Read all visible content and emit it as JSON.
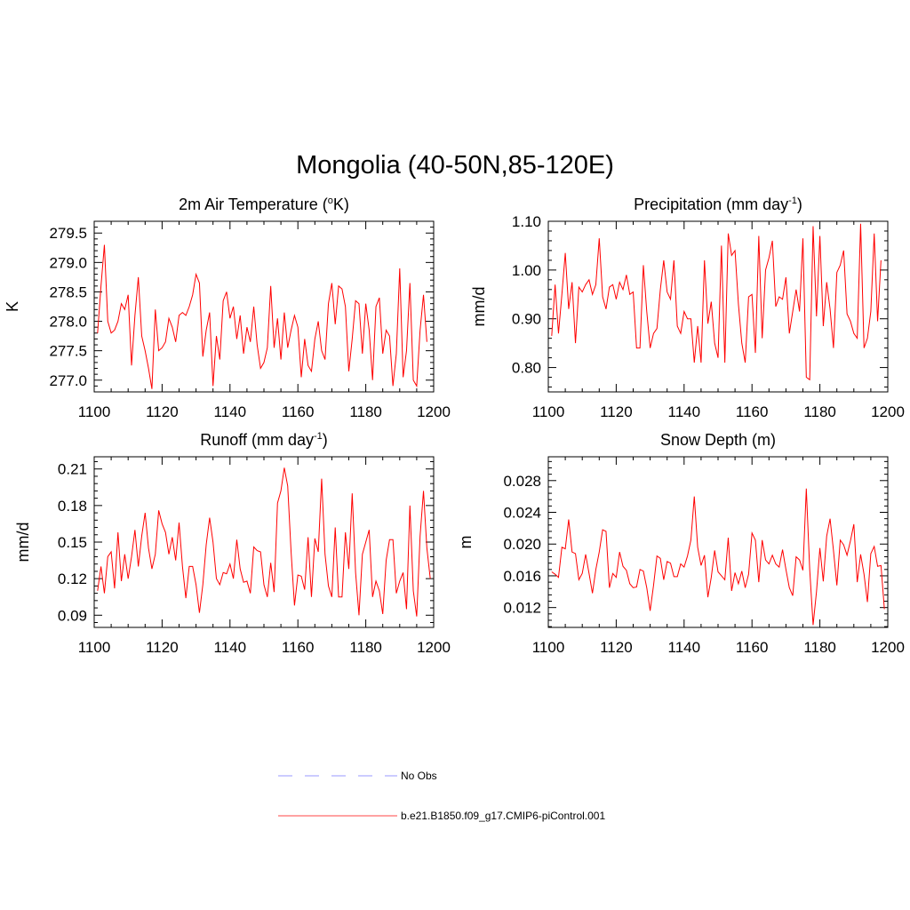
{
  "figure_title": "Mongolia (40-50N,85-120E)",
  "legend": {
    "entries": [
      {
        "label": "No Obs",
        "color": "#9999ff",
        "style": "dashed"
      },
      {
        "label": "b.e21.B1850.f09_g17.CMIP6-piControl.001",
        "color": "#ff4444",
        "style": "solid"
      }
    ]
  },
  "chart_data": [
    {
      "type": "line",
      "title": "2m Air Temperature (",
      "title_sup": "o",
      "title_after": "K)",
      "xlabel": "",
      "ylabel": "K",
      "xlim": [
        1100,
        1200
      ],
      "ylim": [
        276.8,
        279.7
      ],
      "xticks": [
        1100,
        1120,
        1140,
        1160,
        1180,
        1200
      ],
      "xtick_labels": [
        "1100",
        "1120",
        "1140",
        "1160",
        "1180",
        "1200"
      ],
      "yticks": [
        277.0,
        277.5,
        278.0,
        278.5,
        279.0,
        279.5
      ],
      "ytick_labels": [
        "277.0",
        "277.5",
        "278.0",
        "278.5",
        "279.0",
        "279.5"
      ],
      "series": [
        {
          "name": "b.e21.B1850.f09_g17.CMIP6-piControl.001",
          "color": "#ff0000",
          "x_start": 1101,
          "x_step": 1,
          "values": [
            277.8,
            278.6,
            279.3,
            278.0,
            277.8,
            277.85,
            278.0,
            278.3,
            278.2,
            278.45,
            277.25,
            278.1,
            278.75,
            277.75,
            277.5,
            277.2,
            276.85,
            278.2,
            277.5,
            277.55,
            277.65,
            278.05,
            277.9,
            277.65,
            278.1,
            278.15,
            278.1,
            278.25,
            278.45,
            278.8,
            278.65,
            277.4,
            277.85,
            278.15,
            276.9,
            277.75,
            277.35,
            278.35,
            278.5,
            278.05,
            278.25,
            277.7,
            278.1,
            277.45,
            277.9,
            277.65,
            278.25,
            277.6,
            277.2,
            277.3,
            277.55,
            278.6,
            277.55,
            278.05,
            277.35,
            278.15,
            277.55,
            277.85,
            278.1,
            277.9,
            277.05,
            277.7,
            277.25,
            277.15,
            277.7,
            278.0,
            277.5,
            277.35,
            278.3,
            278.65,
            277.95,
            278.6,
            278.55,
            278.25,
            277.15,
            277.7,
            278.35,
            278.3,
            277.45,
            278.3,
            277.85,
            277.0,
            278.25,
            278.4,
            277.45,
            277.85,
            277.75,
            276.9,
            277.45,
            278.9,
            277.05,
            277.5,
            278.65,
            277.0,
            276.9,
            277.85,
            278.45,
            277.65
          ]
        }
      ]
    },
    {
      "type": "line",
      "title": "Precipitation (mm day",
      "title_sup": "-1",
      "title_after": ")",
      "xlabel": "",
      "ylabel": "mm/d",
      "xlim": [
        1100,
        1200
      ],
      "ylim": [
        0.75,
        1.1
      ],
      "xticks": [
        1100,
        1120,
        1140,
        1160,
        1180,
        1200
      ],
      "xtick_labels": [
        "1100",
        "1120",
        "1140",
        "1160",
        "1180",
        "1200"
      ],
      "yticks": [
        0.8,
        0.9,
        1.0,
        1.1
      ],
      "ytick_labels": [
        "0.80",
        "0.90",
        "1.00",
        "1.10"
      ],
      "series": [
        {
          "name": "b.e21.B1850.f09_g17.CMIP6-piControl.001",
          "color": "#ff0000",
          "x_start": 1101,
          "x_step": 1,
          "values": [
            0.865,
            0.97,
            0.87,
            0.95,
            1.035,
            0.92,
            0.975,
            0.85,
            0.965,
            0.955,
            0.97,
            0.98,
            0.95,
            0.97,
            1.065,
            0.945,
            0.92,
            0.965,
            0.97,
            0.94,
            0.975,
            0.96,
            0.99,
            0.95,
            0.955,
            0.84,
            0.84,
            1.01,
            0.915,
            0.84,
            0.87,
            0.88,
            0.96,
            1.02,
            0.955,
            0.94,
            1.02,
            0.885,
            0.87,
            0.915,
            0.9,
            0.9,
            0.81,
            0.885,
            0.81,
            1.02,
            0.89,
            0.935,
            0.85,
            0.82,
            1.05,
            0.81,
            1.075,
            1.03,
            1.04,
            0.93,
            0.85,
            0.81,
            0.945,
            0.95,
            0.83,
            1.07,
            0.86,
            1.0,
            1.025,
            1.06,
            0.925,
            0.945,
            0.94,
            0.985,
            0.87,
            0.915,
            0.96,
            0.915,
            1.065,
            0.78,
            0.775,
            1.09,
            0.905,
            1.07,
            0.885,
            0.975,
            0.92,
            0.84,
            0.995,
            1.01,
            1.04,
            0.91,
            0.895,
            0.87,
            0.86,
            1.095,
            0.84,
            0.86,
            0.915,
            1.075,
            0.895,
            1.02
          ]
        }
      ]
    },
    {
      "type": "line",
      "title": "Runoff (mm day",
      "title_sup": "-1",
      "title_after": ")",
      "xlabel": "",
      "ylabel": "mm/d",
      "xlim": [
        1100,
        1200
      ],
      "ylim": [
        0.08,
        0.22
      ],
      "xticks": [
        1100,
        1120,
        1140,
        1160,
        1180,
        1200
      ],
      "xtick_labels": [
        "1100",
        "1120",
        "1140",
        "1160",
        "1180",
        "1200"
      ],
      "yticks": [
        0.09,
        0.12,
        0.15,
        0.18,
        0.21
      ],
      "ytick_labels": [
        "0.09",
        "0.12",
        "0.15",
        "0.18",
        "0.21"
      ],
      "series": [
        {
          "name": "b.e21.B1850.f09_g17.CMIP6-piControl.001",
          "color": "#ff0000",
          "x_start": 1101,
          "x_step": 1,
          "values": [
            0.11,
            0.13,
            0.108,
            0.138,
            0.142,
            0.112,
            0.158,
            0.118,
            0.14,
            0.12,
            0.138,
            0.16,
            0.13,
            0.155,
            0.174,
            0.145,
            0.128,
            0.14,
            0.176,
            0.165,
            0.158,
            0.14,
            0.154,
            0.135,
            0.166,
            0.13,
            0.104,
            0.13,
            0.13,
            0.115,
            0.092,
            0.115,
            0.148,
            0.17,
            0.15,
            0.12,
            0.115,
            0.125,
            0.124,
            0.132,
            0.12,
            0.152,
            0.128,
            0.117,
            0.118,
            0.108,
            0.146,
            0.143,
            0.142,
            0.115,
            0.105,
            0.133,
            0.109,
            0.182,
            0.192,
            0.211,
            0.196,
            0.142,
            0.098,
            0.123,
            0.122,
            0.111,
            0.154,
            0.105,
            0.153,
            0.142,
            0.202,
            0.14,
            0.114,
            0.105,
            0.162,
            0.105,
            0.105,
            0.158,
            0.128,
            0.19,
            0.125,
            0.09,
            0.14,
            0.15,
            0.16,
            0.105,
            0.118,
            0.11,
            0.091,
            0.135,
            0.152,
            0.152,
            0.108,
            0.118,
            0.125,
            0.095,
            0.18,
            0.11,
            0.089,
            0.155,
            0.192,
            0.145,
            0.12
          ]
        }
      ]
    },
    {
      "type": "line",
      "title": "Snow Depth (m)",
      "title_sup": "",
      "title_after": "",
      "xlabel": "",
      "ylabel": "m",
      "xlim": [
        1100,
        1200
      ],
      "ylim": [
        0.0095,
        0.031
      ],
      "xticks": [
        1100,
        1120,
        1140,
        1160,
        1180,
        1200
      ],
      "xtick_labels": [
        "1100",
        "1120",
        "1140",
        "1160",
        "1180",
        "1200"
      ],
      "yticks": [
        0.012,
        0.016,
        0.02,
        0.024,
        0.028
      ],
      "ytick_labels": [
        "0.012",
        "0.016",
        "0.020",
        "0.024",
        "0.028"
      ],
      "series": [
        {
          "name": "b.e21.B1850.f09_g17.CMIP6-piControl.001",
          "color": "#ff0000",
          "x_start": 1101,
          "x_step": 1,
          "values": [
            0.0165,
            0.0162,
            0.0158,
            0.0196,
            0.0194,
            0.0231,
            0.019,
            0.0188,
            0.0155,
            0.0163,
            0.0187,
            0.0163,
            0.0138,
            0.0168,
            0.019,
            0.0218,
            0.0216,
            0.0145,
            0.0163,
            0.0158,
            0.019,
            0.0172,
            0.0167,
            0.015,
            0.0145,
            0.0146,
            0.0168,
            0.0166,
            0.0145,
            0.0116,
            0.0148,
            0.0185,
            0.0182,
            0.0155,
            0.0178,
            0.0176,
            0.0159,
            0.0159,
            0.0175,
            0.0171,
            0.0185,
            0.0205,
            0.026,
            0.0196,
            0.0173,
            0.0186,
            0.0133,
            0.0158,
            0.0192,
            0.0165,
            0.016,
            0.0155,
            0.0208,
            0.0141,
            0.0164,
            0.015,
            0.0166,
            0.0145,
            0.0162,
            0.0214,
            0.0205,
            0.0152,
            0.0205,
            0.018,
            0.0175,
            0.0186,
            0.0175,
            0.0171,
            0.0193,
            0.0168,
            0.0145,
            0.0135,
            0.0184,
            0.018,
            0.0167,
            0.027,
            0.0168,
            0.0098,
            0.014,
            0.0195,
            0.0153,
            0.021,
            0.0232,
            0.0192,
            0.0148,
            0.0205,
            0.0199,
            0.0186,
            0.0204,
            0.0225,
            0.0152,
            0.0187,
            0.0162,
            0.0127,
            0.0188,
            0.0197,
            0.0172,
            0.0173,
            0.0118
          ]
        }
      ]
    }
  ]
}
